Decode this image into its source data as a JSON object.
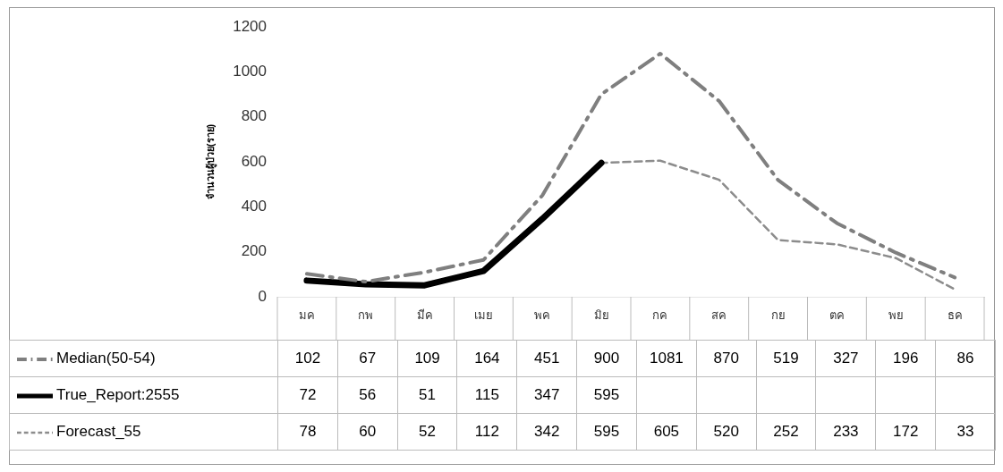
{
  "chart_data": {
    "type": "line",
    "ylabel": "จำนวนผู้ป่วย(ราย)",
    "categories": [
      "มค",
      "กพ",
      "มีค",
      "เมย",
      "พค",
      "มิย",
      "กค",
      "สค",
      "กย",
      "ตค",
      "พย",
      "ธค"
    ],
    "series": [
      {
        "name": "Median(50-54)",
        "color": "#7f7f7f",
        "line_style": "dashdot",
        "values": [
          102,
          67,
          109,
          164,
          451,
          900,
          1081,
          870,
          519,
          327,
          196,
          86
        ]
      },
      {
        "name": "True_Report:2555",
        "color": "#000000",
        "line_style": "solid",
        "values": [
          72,
          56,
          51,
          115,
          347,
          595,
          null,
          null,
          null,
          null,
          null,
          null
        ]
      },
      {
        "name": "Forecast_55",
        "color": "#8c8c8c",
        "line_style": "dashed",
        "values": [
          78,
          60,
          52,
          112,
          342,
          595,
          605,
          520,
          252,
          233,
          172,
          33
        ]
      }
    ],
    "ylim": [
      0,
      1200
    ],
    "yticks": [
      0,
      200,
      400,
      600,
      800,
      1000,
      1200
    ],
    "grid": false,
    "legend": "bottom",
    "marker": "none",
    "data_labels": true
  }
}
